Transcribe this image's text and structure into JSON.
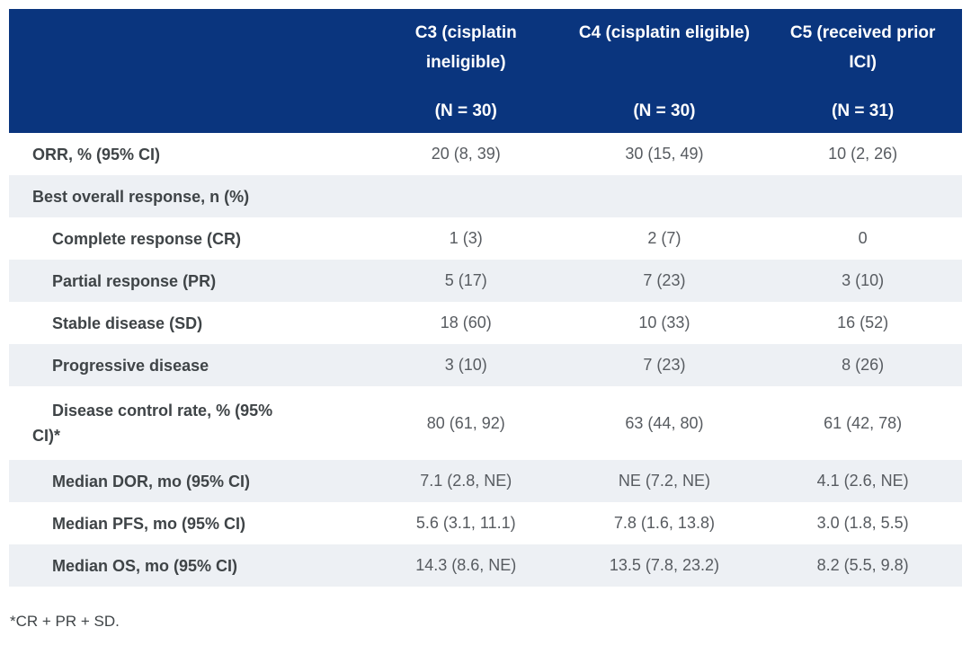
{
  "table": {
    "columns": [
      {
        "title": "C3 (cisplatin ineligible)",
        "n": "(N = 30)"
      },
      {
        "title": "C4 (cisplatin eligible)",
        "n": "(N = 30)"
      },
      {
        "title": "C5 (received prior ICI)",
        "n": "(N = 31)"
      }
    ],
    "rows": [
      {
        "label": "ORR, % (95% CI)",
        "values": [
          "20 (8, 39)",
          "30 (15, 49)",
          "10 (2, 26)"
        ]
      },
      {
        "label": "Best overall response, n (%)",
        "values": [
          "",
          "",
          ""
        ]
      },
      {
        "label": "Complete response (CR)",
        "values": [
          "1 (3)",
          "2 (7)",
          "0"
        ]
      },
      {
        "label": "Partial response (PR)",
        "values": [
          "5 (17)",
          "7 (23)",
          "3 (10)"
        ]
      },
      {
        "label": "Stable disease (SD)",
        "values": [
          "18 (60)",
          "10 (33)",
          "16 (52)"
        ]
      },
      {
        "label": "Progressive disease",
        "values": [
          "3 (10)",
          "7 (23)",
          "8 (26)"
        ]
      },
      {
        "label": "Disease control rate, % (95% CI)*",
        "values": [
          "80 (61, 92)",
          "63 (44, 80)",
          "61 (42, 78)"
        ]
      },
      {
        "label": "Median DOR, mo (95% CI)",
        "values": [
          "7.1 (2.8, NE)",
          "NE (7.2, NE)",
          "4.1 (2.6, NE)"
        ]
      },
      {
        "label": "Median PFS, mo (95% CI)",
        "values": [
          "5.6 (3.1, 11.1)",
          "7.8 (1.6, 13.8)",
          "3.0 (1.8, 5.5)"
        ]
      },
      {
        "label": "Median OS, mo (95% CI)",
        "values": [
          "14.3 (8.6, NE)",
          "13.5 (7.8, 23.2)",
          "8.2 (5.5, 9.8)"
        ]
      }
    ],
    "footnote": "*CR + PR + SD."
  },
  "colors": {
    "header_bg": "#0a357e",
    "header_text": "#ffffff",
    "row_alt_bg": "#edf0f4",
    "label_text": "#3f4447",
    "value_text": "#575b60"
  }
}
